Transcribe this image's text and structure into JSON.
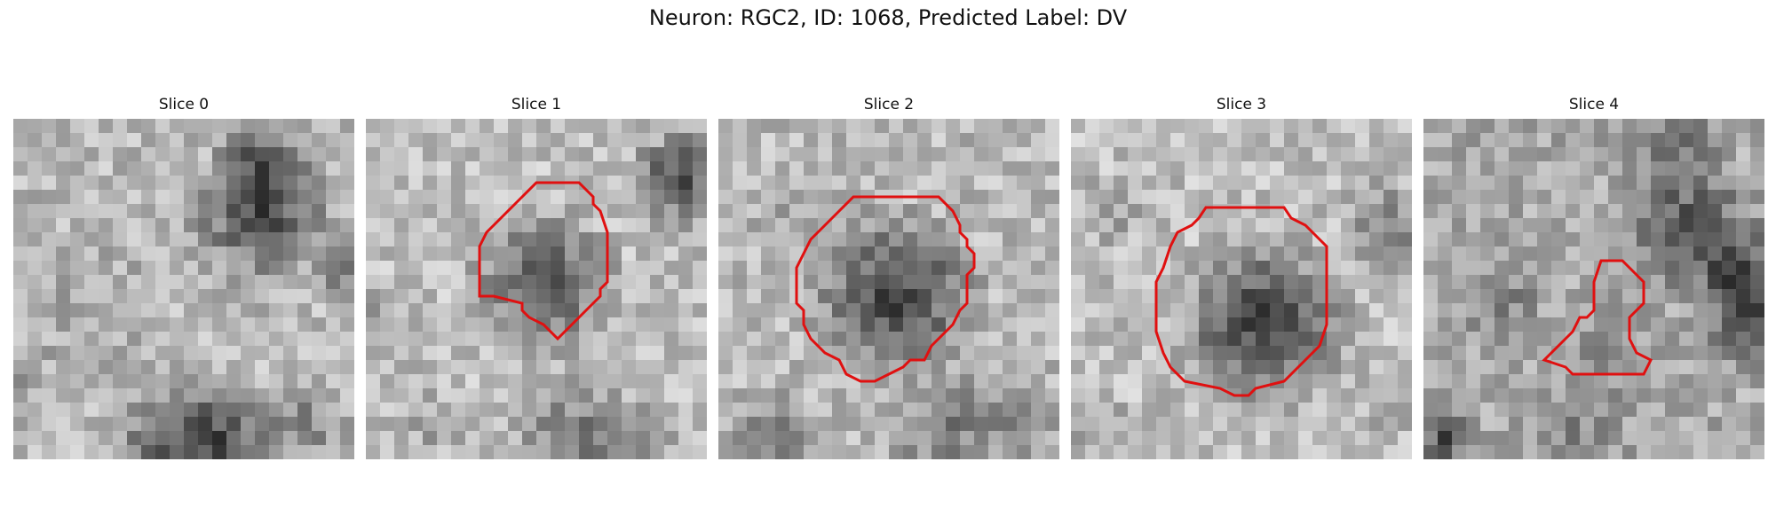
{
  "figure": {
    "title": "Neuron: RGC2, ID: 1068, Predicted Label: DV"
  },
  "contour_color": "#e01010",
  "slices": [
    {
      "title": "Slice 0",
      "has_contour": false
    },
    {
      "title": "Slice 1",
      "has_contour": true
    },
    {
      "title": "Slice 2",
      "has_contour": true
    },
    {
      "title": "Slice 3",
      "has_contour": true
    },
    {
      "title": "Slice 4",
      "has_contour": true
    }
  ]
}
